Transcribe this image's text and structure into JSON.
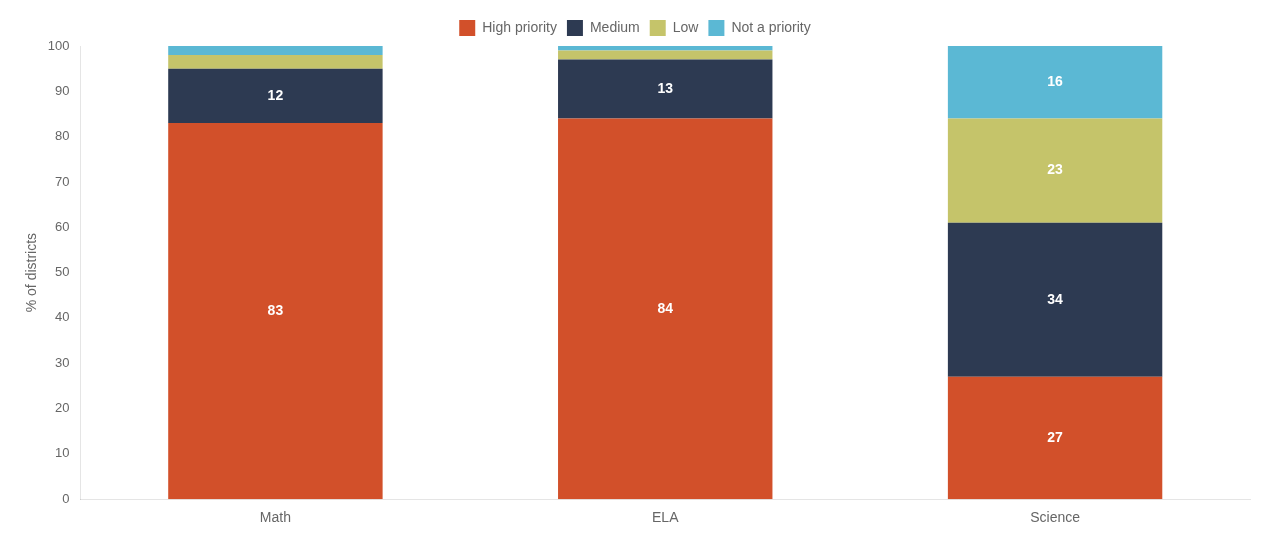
{
  "chart_data": {
    "type": "bar",
    "stacked": true,
    "categories": [
      "Math",
      "ELA",
      "Science"
    ],
    "series": [
      {
        "name": "High priority",
        "color": "#D2502A",
        "values": [
          83,
          84,
          27
        ]
      },
      {
        "name": "Medium",
        "color": "#2D3A52",
        "values": [
          12,
          13,
          34
        ]
      },
      {
        "name": "Low",
        "color": "#C5C46A",
        "values": [
          3,
          2,
          23
        ],
        "value_labels": [
          null,
          null,
          "23"
        ]
      },
      {
        "name": "Not a priority",
        "color": "#5BB8D4",
        "values": [
          2,
          1,
          16
        ],
        "value_labels": [
          null,
          null,
          "16"
        ]
      }
    ],
    "ylabel": "% of districts",
    "ylim": [
      0,
      100
    ],
    "yticks": [
      0,
      10,
      20,
      30,
      40,
      50,
      60,
      70,
      80,
      90,
      100
    ],
    "grid": false,
    "legend": "top",
    "data_labels": true
  }
}
